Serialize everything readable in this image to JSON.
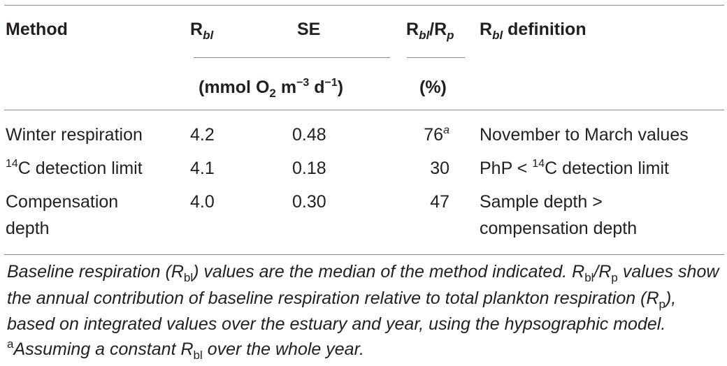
{
  "table": {
    "headers": {
      "method": "Method",
      "rbl_main": "R",
      "rbl_sub": "bl",
      "se": "SE",
      "ratio_a": "R",
      "ratio_a_sub": "bl",
      "ratio_slash": "/R",
      "ratio_b_sub": "p",
      "def_main": "R",
      "def_sub": "bl",
      "def_rest": " definition",
      "units_pre": "(mmol O",
      "units_sub": "2",
      "units_m": " m",
      "units_m_sup": "−3",
      "units_d": " d",
      "units_d_sup": "−1",
      "units_close": ")",
      "percent": "(%)"
    },
    "rows": [
      {
        "method": "Winter respiration",
        "rbl": "4.2",
        "se": "0.48",
        "ratio": "76",
        "ratio_note": "a",
        "definition": "November to March values"
      },
      {
        "method_sup": "14",
        "method": "C detection limit",
        "rbl": "4.1",
        "se": "0.18",
        "ratio": "30",
        "def_pre": "PhP < ",
        "def_sup": "14",
        "def_post": "C detection limit"
      },
      {
        "method_l1": "Compensation",
        "method_l2": "depth",
        "rbl": "4.0",
        "se": "0.30",
        "ratio": "47",
        "def_l1": "Sample depth >",
        "def_l2": "compensation depth"
      }
    ]
  },
  "footnote": {
    "p1": "Baseline respiration (R",
    "p1_sub": "bl",
    "p2": ") values are the median of the method indicated. R",
    "p2_sub": "bl",
    "p3": "/R",
    "p3_sub": "p",
    "p4": " values show the annual contribution of baseline respiration relative to total plankton respiration (R",
    "p4_sub": "p",
    "p5": "), based on integrated values over the estuary and year, using the hypsographic model. ",
    "p6_sup": "a",
    "p7": "Assuming a constant R",
    "p7_sub": "bl",
    "p8": " over the whole year."
  }
}
